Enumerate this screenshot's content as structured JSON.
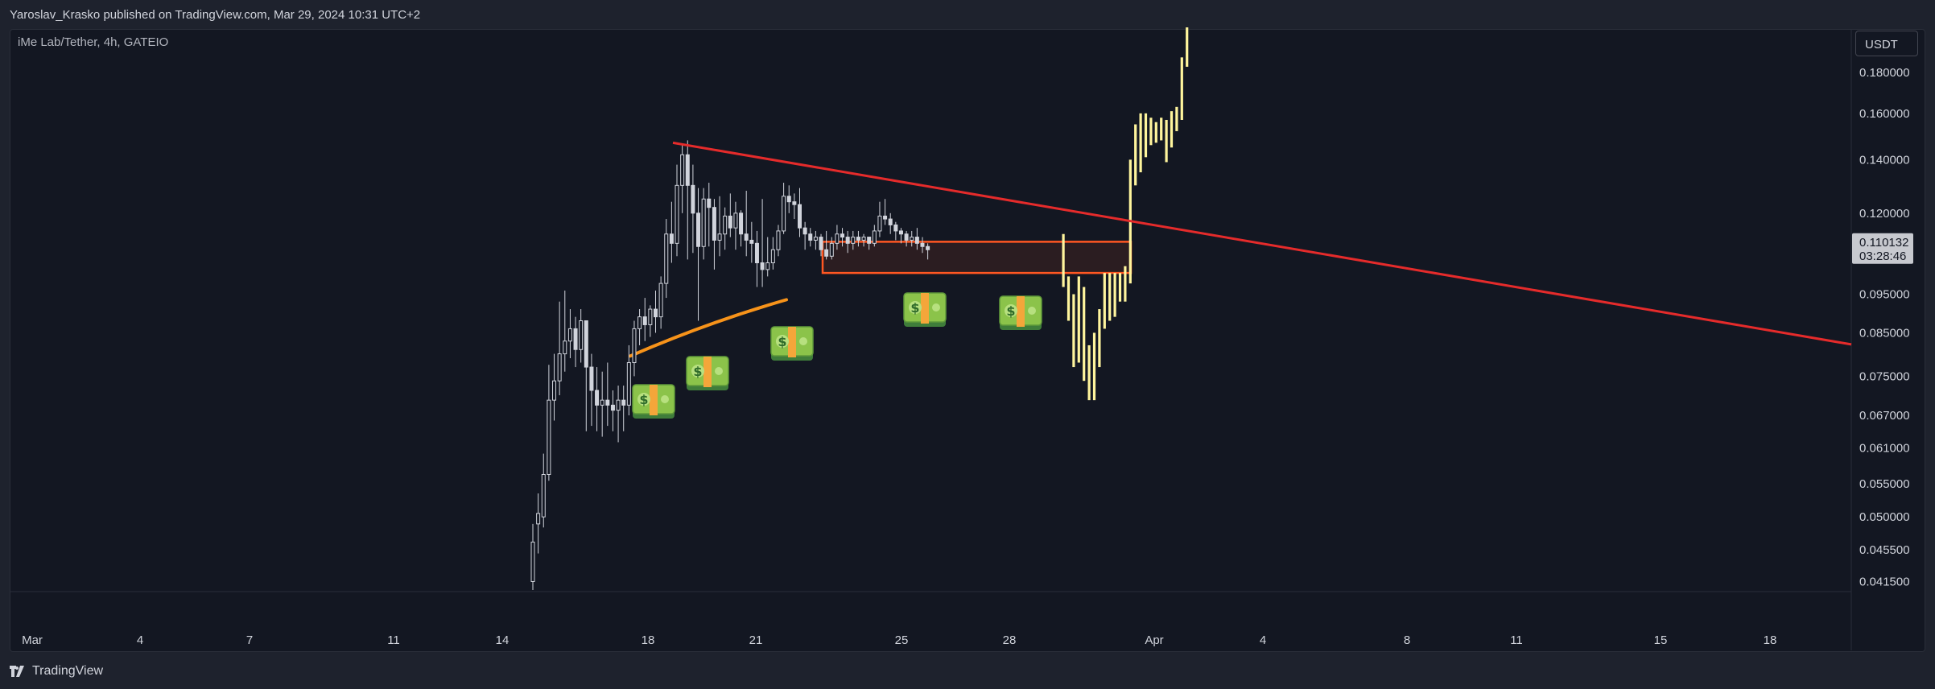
{
  "header": {
    "publish_text": "Yaroslav_Krasko published on TradingView.com, Mar 29, 2024 10:31 UTC+2"
  },
  "symbol": {
    "title": "iMe Lab/Tether, 4h, GATEIO"
  },
  "currency_button": "USDT",
  "price_label": {
    "value": "0.110132",
    "countdown": "03:28:46"
  },
  "footer": {
    "logo_text": "TradingView"
  },
  "colors": {
    "background": "#131722",
    "frame": "#1e222d",
    "axis_text": "#d1d4dc",
    "candle": "#d1d4dc",
    "highlight_bar": "#fff59d",
    "trendline": "#e52b2b",
    "support_curve": "#f7931a",
    "zone_border": "#ff5722",
    "price_label_bg": "#c7c9cf"
  },
  "icons": {
    "money": "money-banknote-icon",
    "logo": "tradingview-logo-icon"
  },
  "chart_data": {
    "type": "candlestick",
    "interval": "4h",
    "y_scale": "log",
    "ylim": [
      0.0405,
      0.205
    ],
    "y_ticks": [
      "0.180000",
      "0.160000",
      "0.140000",
      "0.120000",
      "0.095000",
      "0.085000",
      "0.075000",
      "0.067000",
      "0.061000",
      "0.055000",
      "0.050000",
      "0.045500",
      "0.041500"
    ],
    "x_ticks": [
      "Mar",
      "4",
      "7",
      "11",
      "14",
      "18",
      "21",
      "25",
      "28",
      "Apr",
      "4",
      "8",
      "11",
      "15",
      "18"
    ],
    "candles": [
      [
        0.0415,
        0.0465,
        0.0405,
        0.049
      ],
      [
        0.049,
        0.0505,
        0.045,
        0.0535
      ],
      [
        0.05,
        0.0565,
        0.0485,
        0.06
      ],
      [
        0.0565,
        0.07,
        0.0555,
        0.0775
      ],
      [
        0.07,
        0.074,
        0.066,
        0.08
      ],
      [
        0.074,
        0.08,
        0.071,
        0.093
      ],
      [
        0.08,
        0.083,
        0.076,
        0.096
      ],
      [
        0.083,
        0.086,
        0.079,
        0.091
      ],
      [
        0.086,
        0.081,
        0.077,
        0.089
      ],
      [
        0.081,
        0.088,
        0.078,
        0.091
      ],
      [
        0.088,
        0.077,
        0.064,
        0.088
      ],
      [
        0.077,
        0.072,
        0.065,
        0.08
      ],
      [
        0.072,
        0.069,
        0.064,
        0.077
      ],
      [
        0.069,
        0.07,
        0.063,
        0.076
      ],
      [
        0.07,
        0.069,
        0.065,
        0.078
      ],
      [
        0.069,
        0.068,
        0.064,
        0.072
      ],
      [
        0.068,
        0.07,
        0.062,
        0.073
      ],
      [
        0.07,
        0.069,
        0.064,
        0.073
      ],
      [
        0.069,
        0.078,
        0.067,
        0.082
      ],
      [
        0.078,
        0.086,
        0.075,
        0.088
      ],
      [
        0.086,
        0.089,
        0.082,
        0.091
      ],
      [
        0.089,
        0.087,
        0.083,
        0.094
      ],
      [
        0.087,
        0.091,
        0.084,
        0.092
      ],
      [
        0.091,
        0.089,
        0.085,
        0.096
      ],
      [
        0.089,
        0.098,
        0.086,
        0.1
      ],
      [
        0.098,
        0.113,
        0.094,
        0.118
      ],
      [
        0.113,
        0.11,
        0.104,
        0.124
      ],
      [
        0.11,
        0.13,
        0.106,
        0.138
      ],
      [
        0.13,
        0.142,
        0.12,
        0.146
      ],
      [
        0.142,
        0.13,
        0.105,
        0.148
      ],
      [
        0.13,
        0.12,
        0.107,
        0.138
      ],
      [
        0.12,
        0.109,
        0.088,
        0.129
      ],
      [
        0.109,
        0.125,
        0.105,
        0.129
      ],
      [
        0.125,
        0.122,
        0.109,
        0.131
      ],
      [
        0.122,
        0.111,
        0.102,
        0.125
      ],
      [
        0.111,
        0.113,
        0.106,
        0.126
      ],
      [
        0.113,
        0.119,
        0.108,
        0.122
      ],
      [
        0.119,
        0.115,
        0.112,
        0.127
      ],
      [
        0.115,
        0.12,
        0.108,
        0.124
      ],
      [
        0.12,
        0.113,
        0.109,
        0.121
      ],
      [
        0.113,
        0.111,
        0.106,
        0.128
      ],
      [
        0.111,
        0.11,
        0.104,
        0.117
      ],
      [
        0.11,
        0.104,
        0.097,
        0.114
      ],
      [
        0.104,
        0.102,
        0.097,
        0.125
      ],
      [
        0.102,
        0.104,
        0.1,
        0.112
      ],
      [
        0.104,
        0.108,
        0.102,
        0.112
      ],
      [
        0.108,
        0.114,
        0.106,
        0.116
      ],
      [
        0.114,
        0.126,
        0.113,
        0.131
      ],
      [
        0.126,
        0.124,
        0.12,
        0.13
      ],
      [
        0.124,
        0.123,
        0.118,
        0.127
      ],
      [
        0.123,
        0.115,
        0.112,
        0.129
      ],
      [
        0.115,
        0.113,
        0.108,
        0.117
      ],
      [
        0.113,
        0.111,
        0.109,
        0.115
      ],
      [
        0.111,
        0.112,
        0.108,
        0.114
      ],
      [
        0.112,
        0.108,
        0.106,
        0.113
      ],
      [
        0.108,
        0.106,
        0.105,
        0.114
      ],
      [
        0.106,
        0.11,
        0.105,
        0.112
      ],
      [
        0.11,
        0.113,
        0.108,
        0.116
      ],
      [
        0.113,
        0.112,
        0.109,
        0.115
      ],
      [
        0.112,
        0.11,
        0.107,
        0.114
      ],
      [
        0.11,
        0.112,
        0.108,
        0.114
      ],
      [
        0.112,
        0.111,
        0.109,
        0.114
      ],
      [
        0.111,
        0.112,
        0.109,
        0.113
      ],
      [
        0.112,
        0.11,
        0.108,
        0.112
      ],
      [
        0.11,
        0.114,
        0.109,
        0.116
      ],
      [
        0.114,
        0.119,
        0.112,
        0.124
      ],
      [
        0.119,
        0.118,
        0.116,
        0.125
      ],
      [
        0.118,
        0.116,
        0.113,
        0.12
      ],
      [
        0.116,
        0.114,
        0.111,
        0.117
      ],
      [
        0.114,
        0.113,
        0.11,
        0.115
      ],
      [
        0.113,
        0.111,
        0.109,
        0.114
      ],
      [
        0.111,
        0.112,
        0.109,
        0.114
      ],
      [
        0.112,
        0.11,
        0.108,
        0.115
      ],
      [
        0.11,
        0.109,
        0.107,
        0.112
      ],
      [
        0.109,
        0.108,
        0.105,
        0.11
      ]
    ],
    "highlight_bars": [
      [
        0.112,
        0.099,
        0.097,
        0.113
      ],
      [
        0.099,
        0.09,
        0.088,
        0.1
      ],
      [
        0.09,
        0.079,
        0.077,
        0.095
      ],
      [
        0.079,
        0.095,
        0.078,
        0.1
      ],
      [
        0.095,
        0.08,
        0.074,
        0.097
      ],
      [
        0.08,
        0.072,
        0.07,
        0.082
      ],
      [
        0.072,
        0.078,
        0.07,
        0.085
      ],
      [
        0.078,
        0.088,
        0.077,
        0.091
      ],
      [
        0.088,
        0.095,
        0.086,
        0.101
      ],
      [
        0.095,
        0.09,
        0.088,
        0.101
      ],
      [
        0.09,
        0.1,
        0.089,
        0.101
      ],
      [
        0.1,
        0.094,
        0.093,
        0.101
      ],
      [
        0.094,
        0.099,
        0.093,
        0.103
      ],
      [
        0.099,
        0.136,
        0.098,
        0.14
      ],
      [
        0.136,
        0.15,
        0.13,
        0.155
      ],
      [
        0.15,
        0.157,
        0.135,
        0.16
      ],
      [
        0.157,
        0.148,
        0.141,
        0.16
      ],
      [
        0.148,
        0.153,
        0.146,
        0.158
      ],
      [
        0.153,
        0.15,
        0.147,
        0.156
      ],
      [
        0.15,
        0.155,
        0.148,
        0.158
      ],
      [
        0.155,
        0.149,
        0.139,
        0.157
      ],
      [
        0.149,
        0.154,
        0.145,
        0.161
      ],
      [
        0.154,
        0.158,
        0.152,
        0.163
      ],
      [
        0.158,
        0.185,
        0.157,
        0.188
      ],
      [
        0.185,
        0.205,
        0.183,
        0.205
      ]
    ],
    "trendline": {
      "from": [
        0.147
      ],
      "to": [
        0.0822
      ]
    },
    "support_curve": {
      "from": [
        0.0795
      ],
      "to": [
        0.0935
      ]
    },
    "zone": {
      "top": 0.1105,
      "bottom": 0.101
    }
  }
}
